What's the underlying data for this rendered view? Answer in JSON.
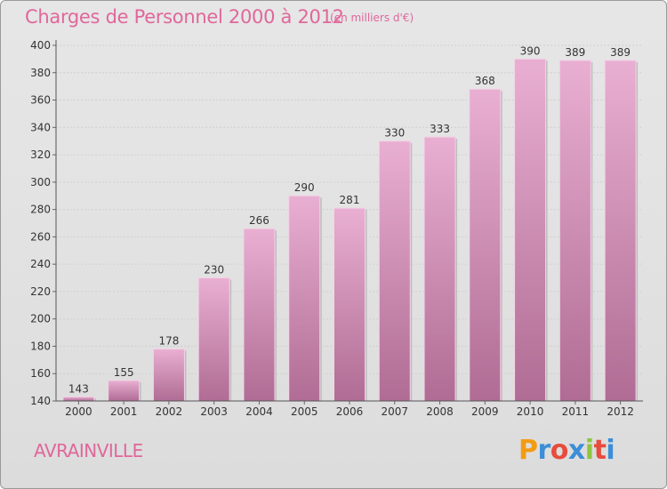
{
  "title": "Charges de Personnel 2000 à 2012",
  "subtitle": "(en milliers d'€)",
  "place": "AVRAINVILLE",
  "logo": {
    "text": "Proxiti",
    "letters": [
      "P",
      "r",
      "o",
      "x",
      "i",
      "t",
      "i"
    ],
    "colors": [
      "#f39c12",
      "#3b8ed8",
      "#e74c3c",
      "#3b8ed8",
      "#8dc63f",
      "#e74c3c",
      "#3b8ed8"
    ]
  },
  "colors": {
    "accent": "#e0679b",
    "bar_top": "#e9afd2",
    "bar_bottom": "#b06c94"
  },
  "chart_data": {
    "type": "bar",
    "title": "Charges de Personnel 2000 à 2012",
    "subtitle": "(en milliers d'€)",
    "categories": [
      "2000",
      "2001",
      "2002",
      "2003",
      "2004",
      "2005",
      "2006",
      "2007",
      "2008",
      "2009",
      "2010",
      "2011",
      "2012"
    ],
    "values": [
      143,
      155,
      178,
      230,
      266,
      290,
      281,
      330,
      333,
      368,
      390,
      389,
      389
    ],
    "ylim": [
      140,
      400
    ],
    "yticks": [
      140,
      160,
      180,
      200,
      220,
      240,
      260,
      280,
      300,
      320,
      340,
      360,
      380,
      400
    ],
    "grid": true,
    "data_labels": true
  }
}
